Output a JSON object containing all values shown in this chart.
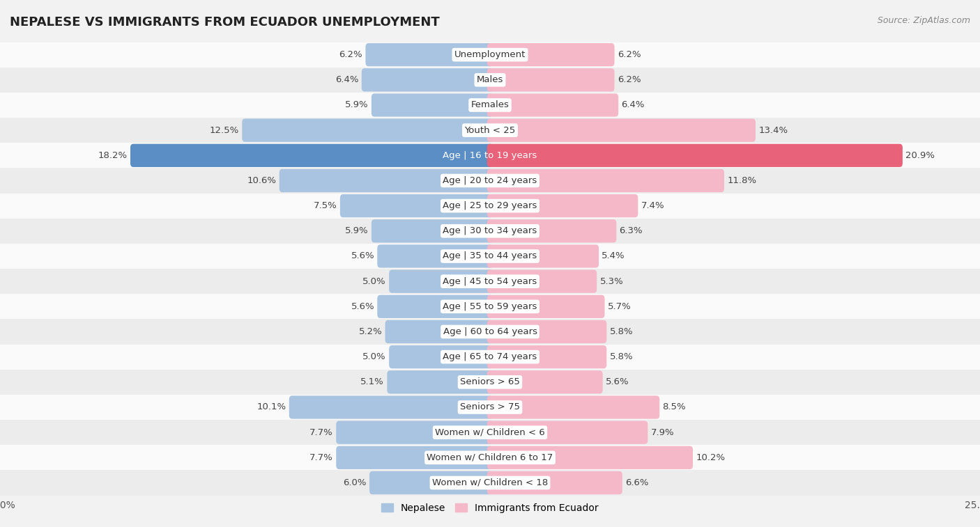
{
  "title": "NEPALESE VS IMMIGRANTS FROM ECUADOR UNEMPLOYMENT",
  "source": "Source: ZipAtlas.com",
  "categories": [
    "Unemployment",
    "Males",
    "Females",
    "Youth < 25",
    "Age | 16 to 19 years",
    "Age | 20 to 24 years",
    "Age | 25 to 29 years",
    "Age | 30 to 34 years",
    "Age | 35 to 44 years",
    "Age | 45 to 54 years",
    "Age | 55 to 59 years",
    "Age | 60 to 64 years",
    "Age | 65 to 74 years",
    "Seniors > 65",
    "Seniors > 75",
    "Women w/ Children < 6",
    "Women w/ Children 6 to 17",
    "Women w/ Children < 18"
  ],
  "nepalese": [
    6.2,
    6.4,
    5.9,
    12.5,
    18.2,
    10.6,
    7.5,
    5.9,
    5.6,
    5.0,
    5.6,
    5.2,
    5.0,
    5.1,
    10.1,
    7.7,
    7.7,
    6.0
  ],
  "ecuador": [
    6.2,
    6.2,
    6.4,
    13.4,
    20.9,
    11.8,
    7.4,
    6.3,
    5.4,
    5.3,
    5.7,
    5.8,
    5.8,
    5.6,
    8.5,
    7.9,
    10.2,
    6.6
  ],
  "nepalese_color": "#a8c4e0",
  "ecuador_color": "#f5b8c8",
  "nepalese_highlight_color": "#5b8ec4",
  "ecuador_highlight_color": "#e8637a",
  "highlight_row": 4,
  "bar_height": 0.62,
  "background_color": "#f2f2f2",
  "row_bg_light": "#fafafa",
  "row_bg_dark": "#ececec",
  "max_val": 25.0,
  "label_fontsize": 9.5,
  "title_fontsize": 13,
  "legend_nepalese": "Nepalese",
  "legend_ecuador": "Immigrants from Ecuador"
}
